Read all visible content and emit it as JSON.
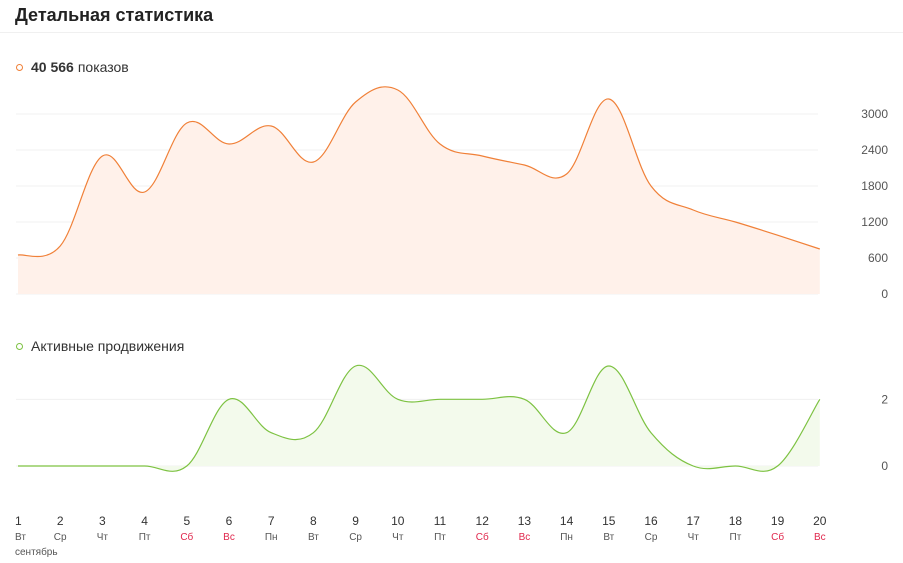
{
  "header": {
    "title": "Детальная статистика"
  },
  "month_label": "сентябрь",
  "chart_data": [
    {
      "type": "area",
      "legend": {
        "value": "40 566",
        "label": "показов",
        "placement": "top-left"
      },
      "color": "#f08038",
      "fill": "#fff1ea",
      "x": [
        "1",
        "2",
        "3",
        "4",
        "5",
        "6",
        "7",
        "8",
        "9",
        "10",
        "11",
        "12",
        "13",
        "14",
        "15",
        "16",
        "17",
        "18",
        "19",
        "20"
      ],
      "values": [
        650,
        800,
        2300,
        1700,
        2850,
        2500,
        2800,
        2200,
        3200,
        3400,
        2500,
        2300,
        2150,
        2000,
        3250,
        1800,
        1400,
        1200,
        980,
        750
      ],
      "yticks": [
        0,
        600,
        1200,
        1800,
        2400,
        3000
      ],
      "ylim": [
        0,
        3300
      ],
      "grid": true
    },
    {
      "type": "area",
      "legend": {
        "label": "Активные продвижения",
        "placement": "top-left"
      },
      "color": "#7dc242",
      "fill": "#f3faec",
      "x": [
        "1",
        "2",
        "3",
        "4",
        "5",
        "6",
        "7",
        "8",
        "9",
        "10",
        "11",
        "12",
        "13",
        "14",
        "15",
        "16",
        "17",
        "18",
        "19",
        "20"
      ],
      "values": [
        0,
        0,
        0,
        0,
        0,
        2,
        1,
        1,
        3,
        2,
        2,
        2,
        2,
        1,
        3,
        1,
        0,
        0,
        0,
        2
      ],
      "yticks": [
        0,
        2
      ],
      "ylim": [
        0,
        3
      ],
      "grid": true
    }
  ],
  "x_axis": {
    "days": [
      {
        "day": "1",
        "wd": "Вт",
        "weekend": false
      },
      {
        "day": "2",
        "wd": "Ср",
        "weekend": false
      },
      {
        "day": "3",
        "wd": "Чт",
        "weekend": false
      },
      {
        "day": "4",
        "wd": "Пт",
        "weekend": false
      },
      {
        "day": "5",
        "wd": "Сб",
        "weekend": true
      },
      {
        "day": "6",
        "wd": "Вс",
        "weekend": true
      },
      {
        "day": "7",
        "wd": "Пн",
        "weekend": false
      },
      {
        "day": "8",
        "wd": "Вт",
        "weekend": false
      },
      {
        "day": "9",
        "wd": "Ср",
        "weekend": false
      },
      {
        "day": "10",
        "wd": "Чт",
        "weekend": false
      },
      {
        "day": "11",
        "wd": "Пт",
        "weekend": false
      },
      {
        "day": "12",
        "wd": "Сб",
        "weekend": true
      },
      {
        "day": "13",
        "wd": "Вс",
        "weekend": true
      },
      {
        "day": "14",
        "wd": "Пн",
        "weekend": false
      },
      {
        "day": "15",
        "wd": "Вт",
        "weekend": false
      },
      {
        "day": "16",
        "wd": "Ср",
        "weekend": false
      },
      {
        "day": "17",
        "wd": "Чт",
        "weekend": false
      },
      {
        "day": "18",
        "wd": "Пт",
        "weekend": false
      },
      {
        "day": "19",
        "wd": "Сб",
        "weekend": true
      },
      {
        "day": "20",
        "wd": "Вс",
        "weekend": true
      }
    ],
    "weekend_color": "#e0284d"
  }
}
